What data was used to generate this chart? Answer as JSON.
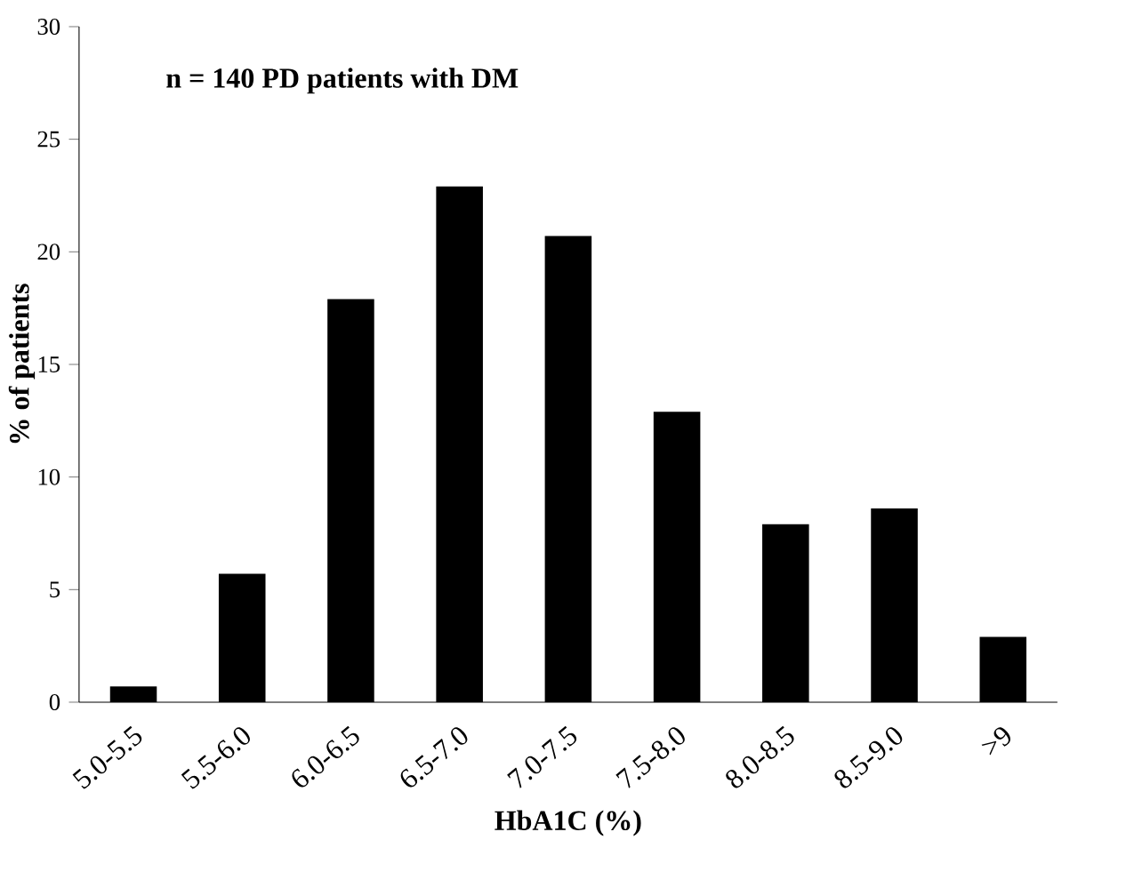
{
  "chart_data": {
    "type": "bar",
    "xlabel": "HbA1C (%)",
    "ylabel": "% of patients",
    "annotations": [
      "n = 140 PD patients with DM"
    ],
    "categories": [
      "5.0-5.5",
      "5.5-6.0",
      "6.0-6.5",
      "6.5-7.0",
      "7.0-7.5",
      "7.5-8.0",
      "8.0-8.5",
      "8.5-9.0",
      ">9"
    ],
    "values": [
      0.7,
      5.7,
      17.9,
      22.9,
      20.7,
      12.9,
      7.9,
      8.6,
      2.9
    ],
    "color": "#000000",
    "ylim": [
      0,
      30
    ],
    "yticks": [
      0,
      5,
      10,
      15,
      20,
      25,
      30
    ],
    "grid": false
  }
}
